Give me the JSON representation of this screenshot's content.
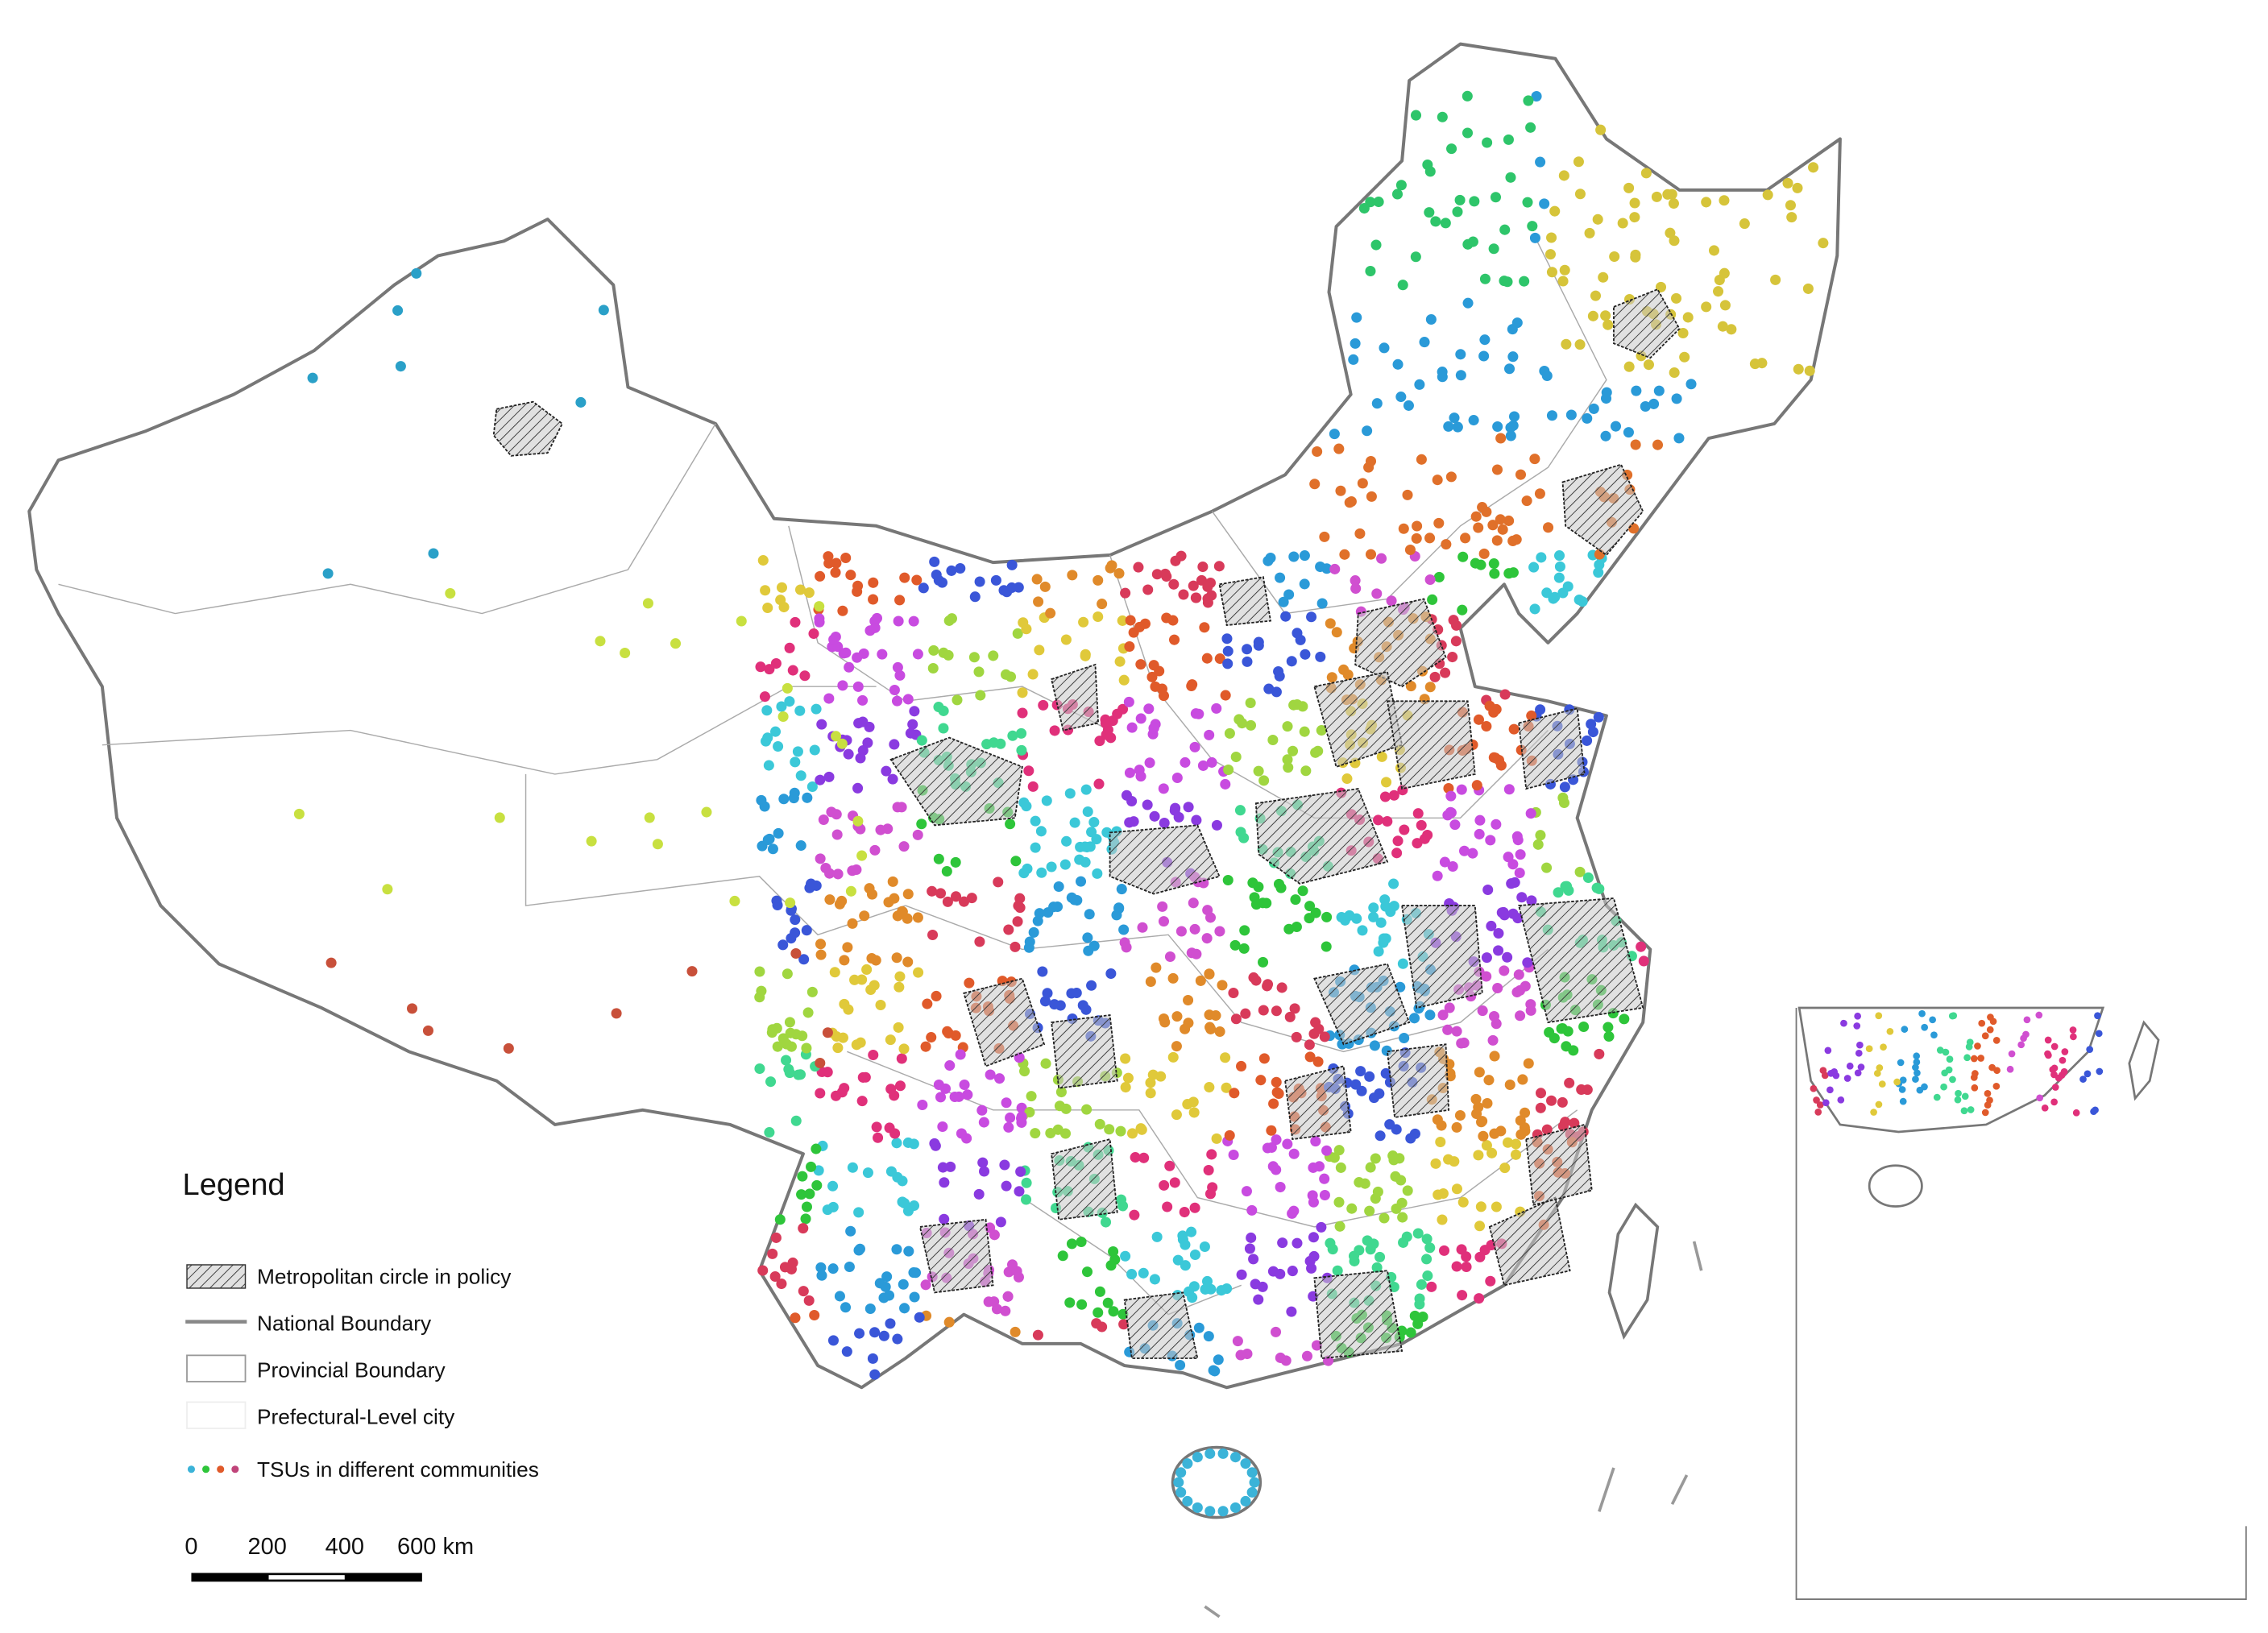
{
  "legend": {
    "title": "Legend",
    "items": [
      "Metropolitan circle in policy",
      "National Boundary",
      "Provincial Boundary",
      "Prefectural-Level city",
      "TSUs in different communities"
    ]
  },
  "scale_bar": {
    "labels": [
      "0",
      "200",
      "400",
      "600 km"
    ]
  }
}
